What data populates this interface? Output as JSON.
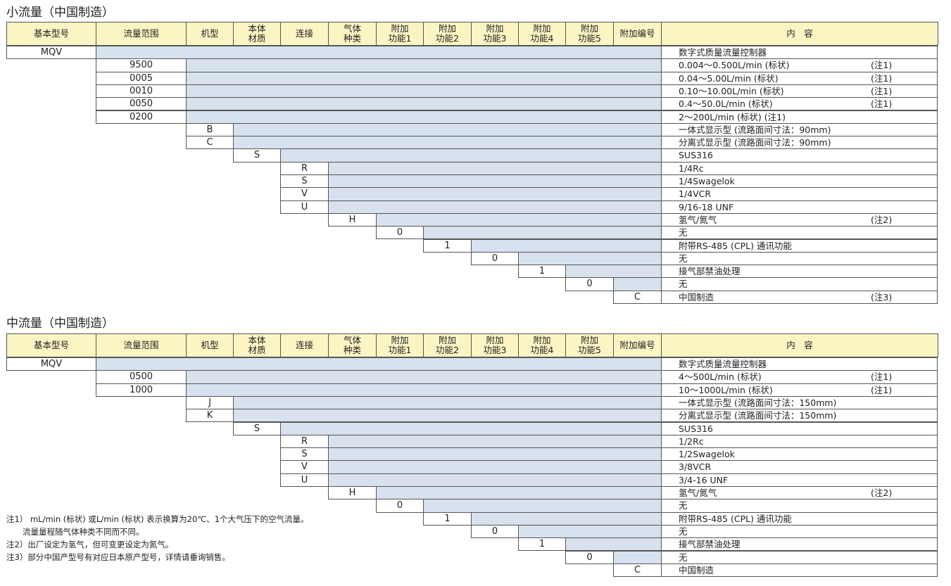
{
  "small": {
    "title": "小流量（中国制造）",
    "headers": [
      "基本型号",
      "流量范围",
      "机型",
      "本体\n材质",
      "连接",
      "气体\n种类",
      "附加\n功能1",
      "附加\n功能2",
      "附加\n功能3",
      "附加\n功能4",
      "附加\n功能5",
      "附加编号",
      "内　容"
    ],
    "rows": [
      {
        "code": "MQV",
        "desc": "数字式质量流量控制器",
        "note": ""
      },
      {
        "code": "9500",
        "desc": "0.004～0.500L/min (标状)",
        "note": "(注1)"
      },
      {
        "code": "0005",
        "desc": "0.04～5.00L/min (标状)",
        "note": "(注1)"
      },
      {
        "code": "0010",
        "desc": "0.10～10.00L/min (标状)",
        "note": "(注1)"
      },
      {
        "code": "0050",
        "desc": "0.4～50.0L/min (标状)",
        "note": "(注1)"
      },
      {
        "code": "0200",
        "desc": "2～200L/min (标状)  (注1)",
        "note": ""
      },
      {
        "code": "B",
        "desc": "一体式显示型 (流路面间寸法：90mm)",
        "note": ""
      },
      {
        "code": "C",
        "desc": "分离式显示型 (流路面间寸法：90mm)",
        "note": ""
      },
      {
        "code": "S",
        "desc": "SUS316",
        "note": ""
      },
      {
        "code": "R",
        "desc": "1/4Rc",
        "note": ""
      },
      {
        "code": "S",
        "desc": "1/4Swagelok",
        "note": ""
      },
      {
        "code": "V",
        "desc": "1/4VCR",
        "note": ""
      },
      {
        "code": "U",
        "desc": "9/16-18 UNF",
        "note": ""
      },
      {
        "code": "H",
        "desc": "氢气/氮气",
        "note": "(注2)"
      },
      {
        "code": "0",
        "desc": "无",
        "note": ""
      },
      {
        "code": "1",
        "desc": "附带RS-485 (CPL) 通讯功能",
        "note": ""
      },
      {
        "code": "0",
        "desc": "无",
        "note": ""
      },
      {
        "code": "1",
        "desc": "接气部禁油处理",
        "note": ""
      },
      {
        "code": "0",
        "desc": "无",
        "note": ""
      },
      {
        "code": "C",
        "desc": "中国制造",
        "note": "(注3)"
      }
    ]
  },
  "medium": {
    "title": "中流量（中国制造）",
    "headers": [
      "基本型号",
      "流量范围",
      "机型",
      "本体\n材质",
      "连接",
      "气体\n种类",
      "附加\n功能1",
      "附加\n功能2",
      "附加\n功能3",
      "附加\n功能4",
      "附加\n功能5",
      "附加编号",
      "内　容"
    ],
    "rows": [
      {
        "code": "MQV",
        "desc": "数字式质量流量控制器",
        "note": ""
      },
      {
        "code": "0500",
        "desc": "4～500L/min (标状)",
        "note": "(注1)"
      },
      {
        "code": "1000",
        "desc": "10～1000L/min (标状)",
        "note": "(注1)"
      },
      {
        "code": "J",
        "desc": "一体式显示型 (流路面间寸法：150mm)",
        "note": ""
      },
      {
        "code": "K",
        "desc": "分离式显示型 (流路面间寸法：150mm)",
        "note": ""
      },
      {
        "code": "S",
        "desc": "SUS316",
        "note": ""
      },
      {
        "code": "R",
        "desc": "1/2Rc",
        "note": ""
      },
      {
        "code": "S",
        "desc": "1/2Swagelok",
        "note": ""
      },
      {
        "code": "V",
        "desc": "3/8VCR",
        "note": ""
      },
      {
        "code": "U",
        "desc": "3/4-16 UNF",
        "note": ""
      },
      {
        "code": "H",
        "desc": "氢气/氮气",
        "note": "(注2)"
      },
      {
        "code": "0",
        "desc": "无",
        "note": ""
      },
      {
        "code": "1",
        "desc": "附带RS-485 (CPL) 通讯功能",
        "note": ""
      },
      {
        "code": "0",
        "desc": "无",
        "note": ""
      },
      {
        "code": "1",
        "desc": "接气部禁油处理",
        "note": ""
      },
      {
        "code": "0",
        "desc": "无",
        "note": ""
      },
      {
        "code": "C",
        "desc": "中国制造",
        "note": ""
      }
    ]
  },
  "notes": [
    "注1） mL/min (标状) 或L/min (标状) 表示换算为20℃、1个大气压下的空气流量。",
    "　　流量量程随气体种类不同而不同。",
    "注2）出厂设定为氢气，但可变更设定为氮气。",
    "注3）部分中国产型号有对应日本原产型号，详情请垂询销售。"
  ]
}
